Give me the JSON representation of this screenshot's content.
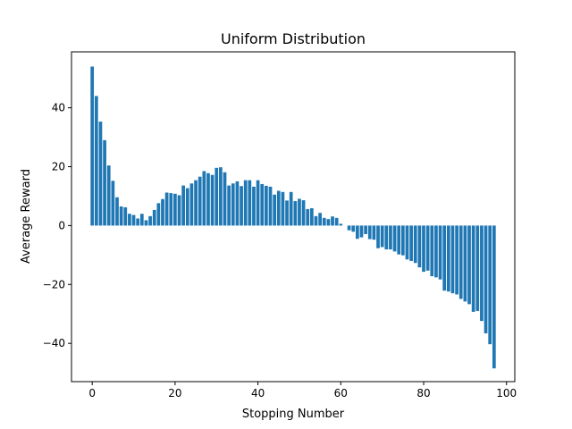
{
  "chart_data": {
    "type": "bar",
    "title": "Uniform Distribution",
    "xlabel": "Stopping Number",
    "ylabel": "Average Reward",
    "xlim": [
      -5,
      102
    ],
    "ylim": [
      -53,
      59
    ],
    "xticks": [
      0,
      20,
      40,
      60,
      80,
      100
    ],
    "yticks": [
      -40,
      -20,
      0,
      20,
      40
    ],
    "grid": false,
    "bar_color": "#1f77b4",
    "x": [
      0,
      1,
      2,
      3,
      4,
      5,
      6,
      7,
      8,
      9,
      10,
      11,
      12,
      13,
      14,
      15,
      16,
      17,
      18,
      19,
      20,
      21,
      22,
      23,
      24,
      25,
      26,
      27,
      28,
      29,
      30,
      31,
      32,
      33,
      34,
      35,
      36,
      37,
      38,
      39,
      40,
      41,
      42,
      43,
      44,
      45,
      46,
      47,
      48,
      49,
      50,
      51,
      52,
      53,
      54,
      55,
      56,
      57,
      58,
      59,
      60,
      61,
      62,
      63,
      64,
      65,
      66,
      67,
      68,
      69,
      70,
      71,
      72,
      73,
      74,
      75,
      76,
      77,
      78,
      79,
      80,
      81,
      82,
      83,
      84,
      85,
      86,
      87,
      88,
      89,
      90,
      91,
      92,
      93,
      94,
      95,
      96,
      97
    ],
    "values": [
      54,
      44,
      35.3,
      29,
      20.4,
      15.2,
      9.6,
      6.5,
      6.2,
      4,
      3.6,
      2.4,
      4,
      1.8,
      3.2,
      5.3,
      7.6,
      9,
      11.2,
      11,
      10.8,
      10.3,
      13.6,
      12.7,
      14.3,
      15.4,
      16.6,
      18.5,
      17.8,
      17.2,
      19.6,
      19.8,
      18.1,
      13.6,
      14.3,
      15,
      13.4,
      15.4,
      15.4,
      13.2,
      15.4,
      14.1,
      13.5,
      13.2,
      10.5,
      11.8,
      11.4,
      8.5,
      11.4,
      8.3,
      9.1,
      8.6,
      5.6,
      5.9,
      3.2,
      4.3,
      2.6,
      2.2,
      3.1,
      2.6,
      0.6,
      0,
      -1.6,
      -2.1,
      -4.5,
      -4,
      -2.9,
      -4.6,
      -4.8,
      -7.7,
      -7.3,
      -8.1,
      -8.1,
      -8.8,
      -9.8,
      -10.1,
      -11.5,
      -12,
      -12.7,
      -14.2,
      -15.7,
      -15.3,
      -17.2,
      -17.6,
      -18.3,
      -22.1,
      -22.4,
      -23,
      -23.4,
      -24.9,
      -25.8,
      -26.7,
      -29.3,
      -29,
      -32.4,
      -36.6,
      -40.3,
      -48.5
    ]
  }
}
